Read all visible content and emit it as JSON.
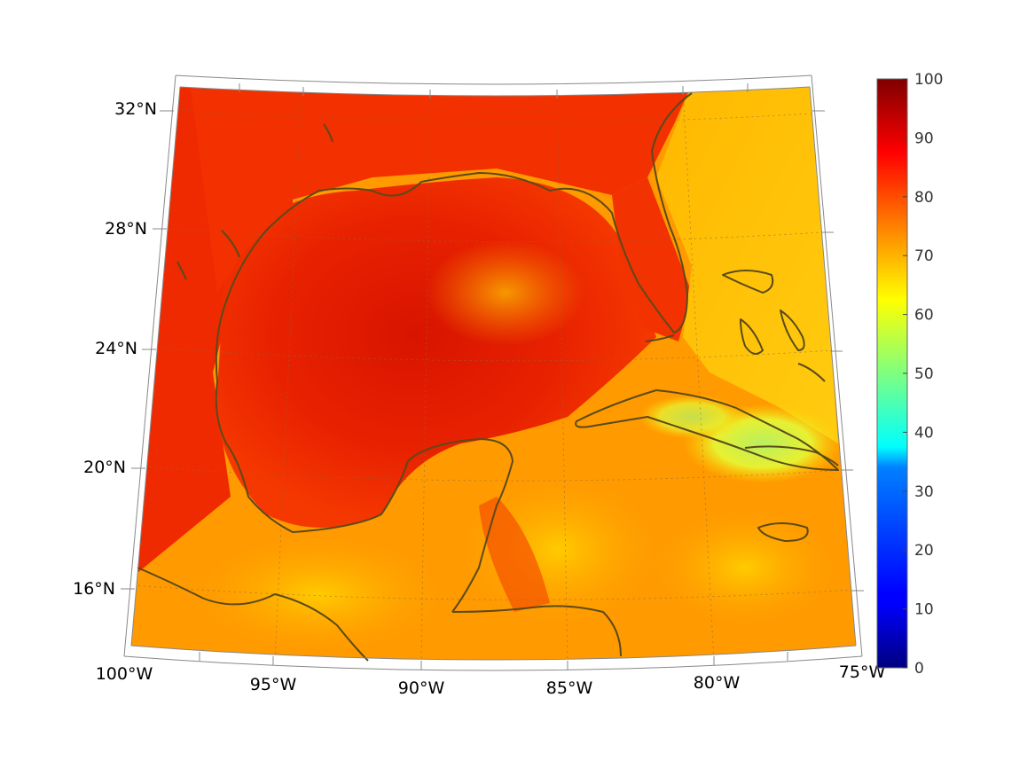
{
  "map": {
    "projection": "conic",
    "lon_range": [
      -100,
      -75
    ],
    "lat_range": [
      14,
      33
    ],
    "lon_ticks": [
      "100°W",
      "95°W",
      "90°W",
      "85°W",
      "80°W",
      "75°W"
    ],
    "lat_ticks": [
      "16°N",
      "20°N",
      "24°N",
      "28°N",
      "32°N"
    ],
    "grid": true,
    "coastline_color": "#5a4a1a",
    "field_palette": "jet",
    "field_description_colors": {
      "gulf_core": "#e01800",
      "gulf_edge": "#f83a00",
      "southern_sea": "#ffb000",
      "cuba_region": "#d8f040"
    }
  },
  "colorbar": {
    "min": 0,
    "max": 100,
    "ticks": [
      "100",
      "90",
      "80",
      "70",
      "60",
      "50",
      "40",
      "30",
      "20",
      "10",
      "0"
    ],
    "palette": "jet",
    "placement": "right"
  }
}
